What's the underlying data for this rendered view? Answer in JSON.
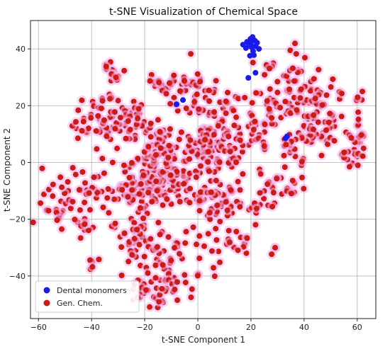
{
  "chart_data": {
    "type": "scatter",
    "title": "t-SNE Visualization of Chemical Space",
    "xlabel": "t-SNE Component 1",
    "ylabel": "t-SNE Component 2",
    "xlim": [
      -63,
      67
    ],
    "ylim": [
      -55,
      50
    ],
    "xticks": [
      -60,
      -40,
      -20,
      0,
      20,
      40,
      60
    ],
    "yticks": [
      -40,
      -20,
      0,
      20,
      40
    ],
    "grid": true,
    "legend_position": "lower-left",
    "series": [
      {
        "name": "Dental monomers",
        "color": "#1a1aee",
        "points": [
          [
            18.5,
            42.5
          ],
          [
            19.8,
            43.5
          ],
          [
            20.6,
            44.2
          ],
          [
            21.4,
            43.0
          ],
          [
            19.2,
            41.2
          ],
          [
            20.2,
            40.6
          ],
          [
            21.8,
            41.0
          ],
          [
            22.3,
            42.2
          ],
          [
            18.1,
            40.3
          ],
          [
            20.8,
            39.2
          ],
          [
            21.1,
            37.8
          ],
          [
            19.6,
            37.6
          ],
          [
            17.0,
            41.5
          ],
          [
            23.0,
            40.0
          ],
          [
            20.0,
            42.0
          ],
          [
            19.0,
            29.8
          ],
          [
            21.7,
            31.6
          ],
          [
            33.0,
            8.5
          ],
          [
            33.6,
            9.2
          ],
          [
            -8.0,
            20.5
          ],
          [
            -5.6,
            22.0
          ]
        ]
      },
      {
        "name": "Gen. Chem.",
        "color": "#cc1a14",
        "halo_color": "#f4b4ee",
        "clusters": [
          {
            "cx": -14,
            "cy": -7,
            "sx": 6,
            "sy": 5,
            "n": 120
          },
          {
            "cx": 2,
            "cy": 5,
            "sx": 6,
            "sy": 5,
            "n": 90
          },
          {
            "cx": -16,
            "cy": 6,
            "sx": 4,
            "sy": 3,
            "n": 40
          },
          {
            "cx": -26,
            "cy": 16,
            "sx": 5,
            "sy": 4,
            "n": 45
          },
          {
            "cx": -26,
            "cy": -10,
            "sx": 4,
            "sy": 5,
            "n": 45
          },
          {
            "cx": -24,
            "cy": -25,
            "sx": 4,
            "sy": 4,
            "n": 35
          },
          {
            "cx": -14,
            "cy": -35,
            "sx": 5,
            "sy": 5,
            "n": 40
          },
          {
            "cx": -22,
            "cy": -45,
            "sx": 3,
            "sy": 2,
            "n": 12
          },
          {
            "cx": -14,
            "cy": -48,
            "sx": 2,
            "sy": 2,
            "n": 10
          },
          {
            "cx": -46,
            "cy": -10,
            "sx": 7,
            "sy": 5,
            "n": 40
          },
          {
            "cx": -38,
            "cy": 13,
            "sx": 4,
            "sy": 6,
            "n": 40
          },
          {
            "cx": -40,
            "cy": -36,
            "sx": 1.5,
            "sy": 1.5,
            "n": 5
          },
          {
            "cx": -32,
            "cy": 30,
            "sx": 2,
            "sy": 4,
            "n": 14
          },
          {
            "cx": -15,
            "cy": 28,
            "sx": 3,
            "sy": 2,
            "n": 12
          },
          {
            "cx": -6,
            "cy": 25,
            "sx": 5,
            "sy": 4,
            "n": 25
          },
          {
            "cx": 8,
            "cy": 22,
            "sx": 6,
            "sy": 3,
            "n": 25
          },
          {
            "cx": 13,
            "cy": 8,
            "sx": 4,
            "sy": 5,
            "n": 35
          },
          {
            "cx": 12,
            "cy": -12,
            "sx": 4,
            "sy": 4,
            "n": 25
          },
          {
            "cx": 4,
            "cy": -12,
            "sx": 4,
            "sy": 4,
            "n": 30
          },
          {
            "cx": 2,
            "cy": -30,
            "sx": 5,
            "sy": 5,
            "n": 22
          },
          {
            "cx": 16,
            "cy": -28,
            "sx": 3,
            "sy": 2,
            "n": 12
          },
          {
            "cx": -6,
            "cy": -43,
            "sx": 3,
            "sy": 3,
            "n": 10
          },
          {
            "cx": 24,
            "cy": 13,
            "sx": 4,
            "sy": 7,
            "n": 28
          },
          {
            "cx": 35,
            "cy": 22,
            "sx": 6,
            "sy": 4,
            "n": 40
          },
          {
            "cx": 44,
            "cy": 26,
            "sx": 4,
            "sy": 3,
            "n": 15
          },
          {
            "cx": 46,
            "cy": 12,
            "sx": 5,
            "sy": 4,
            "n": 38
          },
          {
            "cx": 60,
            "cy": 8,
            "sx": 2,
            "sy": 4,
            "n": 22
          },
          {
            "cx": 36,
            "cy": 5,
            "sx": 4,
            "sy": 4,
            "n": 22
          },
          {
            "cx": 33,
            "cy": -8,
            "sx": 4,
            "sy": 3,
            "n": 15
          },
          {
            "cx": 25,
            "cy": -12,
            "sx": 3,
            "sy": 4,
            "n": 15
          },
          {
            "cx": 28,
            "cy": -31,
            "sx": 1,
            "sy": 1,
            "n": 3
          },
          {
            "cx": 36,
            "cy": 33,
            "sx": 2,
            "sy": 4,
            "n": 10
          },
          {
            "cx": 26,
            "cy": 34,
            "sx": 2,
            "sy": 2,
            "n": 8
          },
          {
            "cx": 52,
            "cy": 22,
            "sx": 4,
            "sy": 3,
            "n": 12
          },
          {
            "cx": 56,
            "cy": 2,
            "sx": 3,
            "sy": 2,
            "n": 8
          },
          {
            "cx": -2,
            "cy": 28,
            "sx": 2,
            "sy": 2,
            "n": 8
          },
          {
            "cx": -44,
            "cy": -22,
            "sx": 3,
            "sy": 2,
            "n": 10
          },
          {
            "cx": -52,
            "cy": -16,
            "sx": 3,
            "sy": 3,
            "n": 12
          }
        ]
      }
    ]
  }
}
